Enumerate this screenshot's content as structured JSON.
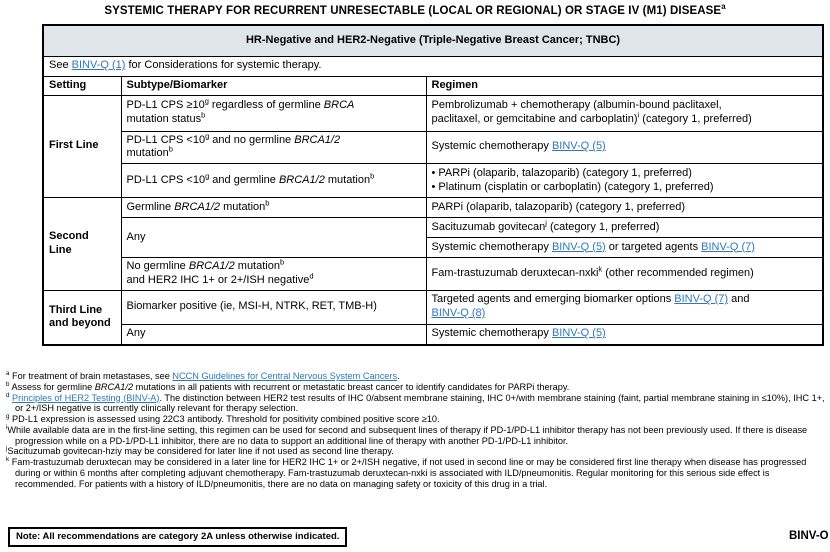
{
  "page": {
    "title_segments": [
      {
        "t": "SYSTEMIC THERAPY FOR RECURRENT UNRESECTABLE (LOCAL OR REGIONAL) OR STAGE IV (M1) DISEASE"
      },
      {
        "t": "a",
        "sup": true
      }
    ],
    "note": "Note: All recommendations are category 2A unless otherwise indicated.",
    "page_label": "BINV-O",
    "colors": {
      "band_bg": "#dee6eb",
      "link": "#2e77bb"
    }
  },
  "table": {
    "band_title": "HR-Negative and HER2-Negative (Triple-Negative Breast Cancer; TNBC)",
    "see_note": [
      {
        "t": "See "
      },
      {
        "t": "BINV-Q (1)",
        "link": true
      },
      {
        "t": " for Considerations for systemic therapy."
      }
    ],
    "columns": [
      "Setting",
      "Subtype/Biomarker",
      "Regimen"
    ],
    "settings": {
      "first": "First Line",
      "second": "Second\nLine",
      "third": "Third Line\nand beyond"
    },
    "rows": {
      "fl1": {
        "subtype": [
          {
            "t": "PD-L1 CPS ≥10"
          },
          {
            "t": "g",
            "sup": true
          },
          {
            "t": " regardless of germline "
          },
          {
            "t": "BRCA",
            "i": true
          },
          {
            "t": "\nmutation status"
          },
          {
            "t": "b",
            "sup": true
          }
        ],
        "regimen": [
          {
            "t": "Pembrolizumab + chemotherapy (albumin-bound paclitaxel,\npaclitaxel, or gemcitabine and carboplatin)"
          },
          {
            "t": "i",
            "sup": true
          },
          {
            "t": " (category 1, preferred)"
          }
        ]
      },
      "fl2": {
        "subtype": [
          {
            "t": "PD-L1 CPS <10"
          },
          {
            "t": "g",
            "sup": true
          },
          {
            "t": " and no germline "
          },
          {
            "t": "BRCA1/2",
            "i": true
          },
          {
            "t": "\nmutation"
          },
          {
            "t": "b",
            "sup": true
          }
        ],
        "regimen": [
          {
            "t": "Systemic chemotherapy "
          },
          {
            "t": "BINV-Q (5)",
            "link": true
          }
        ]
      },
      "fl3": {
        "subtype": [
          {
            "t": "PD-L1 CPS <10"
          },
          {
            "t": "g",
            "sup": true
          },
          {
            "t": " and germline "
          },
          {
            "t": "BRCA1/2",
            "i": true
          },
          {
            "t": " mutation"
          },
          {
            "t": "b",
            "sup": true
          }
        ],
        "regimen": [
          {
            "t": "• PARPi (olaparib, talazoparib) (category 1, preferred)\n• Platinum (cisplatin or carboplatin) (category 1, preferred)"
          }
        ]
      },
      "sl1": {
        "subtype": [
          {
            "t": "Germline "
          },
          {
            "t": "BRCA1/2",
            "i": true
          },
          {
            "t": " mutation"
          },
          {
            "t": "b",
            "sup": true
          }
        ],
        "regimen": [
          {
            "t": "PARPi (olaparib, talazoparib) (category 1, preferred)"
          }
        ]
      },
      "sl2": {
        "subtype": [
          {
            "t": "Any"
          }
        ],
        "regimen": [
          {
            "t": "Sacituzumab govitecan"
          },
          {
            "t": "j",
            "sup": true
          },
          {
            "t": " (category 1, preferred)"
          }
        ]
      },
      "sl3": {
        "regimen": [
          {
            "t": "Systemic chemotherapy "
          },
          {
            "t": "BINV-Q (5)",
            "link": true
          },
          {
            "t": " or targeted agents "
          },
          {
            "t": "BINV-Q (7)",
            "link": true
          }
        ]
      },
      "sl4": {
        "subtype": [
          {
            "t": "No germline "
          },
          {
            "t": "BRCA1/2",
            "i": true
          },
          {
            "t": " mutation"
          },
          {
            "t": "b",
            "sup": true
          },
          {
            "t": "\nand HER2 IHC 1+ or 2+/ISH negative"
          },
          {
            "t": "d",
            "sup": true
          }
        ],
        "regimen": [
          {
            "t": "Fam-trastuzumab deruxtecan-nxki"
          },
          {
            "t": "k",
            "sup": true
          },
          {
            "t": " (other recommended regimen)"
          }
        ]
      },
      "tl1": {
        "subtype": [
          {
            "t": "Biomarker positive (ie, MSI-H, NTRK, RET, TMB-H)"
          }
        ],
        "regimen": [
          {
            "t": "Targeted agents and emerging biomarker options "
          },
          {
            "t": "BINV-Q (7)",
            "link": true
          },
          {
            "t": " and\n"
          },
          {
            "t": "BINV-Q (8)",
            "link": true
          }
        ]
      },
      "tl2": {
        "subtype": [
          {
            "t": "Any"
          }
        ],
        "regimen": [
          {
            "t": "Systemic chemotherapy "
          },
          {
            "t": "BINV-Q (5)",
            "link": true
          }
        ]
      }
    }
  },
  "footnotes": [
    {
      "marker": "a",
      "segments": [
        {
          "t": "For treatment of brain metastases, see "
        },
        {
          "t": "NCCN Guidelines for Central Nervous System Cancers",
          "link": true
        },
        {
          "t": "."
        }
      ]
    },
    {
      "marker": "b",
      "segments": [
        {
          "t": "Assess for germline "
        },
        {
          "t": "BRCA1/2",
          "i": true
        },
        {
          "t": " mutations in all patients with recurrent or metastatic breast cancer to identify candidates for PARPi therapy."
        }
      ]
    },
    {
      "marker": "d",
      "segments": [
        {
          "t": "Principles of HER2 Testing (BINV-A)",
          "link": true
        },
        {
          "t": ". The distinction between HER2 test results of IHC 0/absent membrane staining, IHC 0+/with membrane staining (faint, partial membrane staining in ≤10%), IHC 1+, or 2+/ISH negative is currently clinically relevant for therapy selection."
        }
      ]
    },
    {
      "marker": "g",
      "segments": [
        {
          "t": "PD-L1 expression is assessed using 22C3 antibody. Threshold for positivity combined positive score ≥10."
        }
      ]
    },
    {
      "marker": "i",
      "segments": [
        {
          "t": "While available data are in the first-line setting, this regimen can be used for second and subsequent lines of therapy if PD-1/PD-L1 inhibitor therapy has not been previously used. If there is disease progression while on a PD-1/PD-L1 inhibitor, there are no data to support an additional line of therapy with another PD-1/PD-L1 inhibitor."
        }
      ]
    },
    {
      "marker": "j",
      "segments": [
        {
          "t": "Sacituzumab govitecan-hziy may be considered for later line if not used as second line therapy."
        }
      ]
    },
    {
      "marker": "k",
      "segments": [
        {
          "t": "Fam-trastuzumab deruxtecan may be considered in a later line for HER2 IHC 1+ or 2+/ISH negative, if not used in second line or may be considered first line therapy when disease has progressed during or within 6 months after completing adjuvant chemotherapy. Fam-trastuzumab deruxtecan-nxki is associated with ILD/pneumonitis. Regular monitoring for this serious side effect is recommended. For patients with a history of ILD/pneumonitis, there are no data on managing safety or toxicity of this drug in a trial."
        }
      ]
    }
  ]
}
